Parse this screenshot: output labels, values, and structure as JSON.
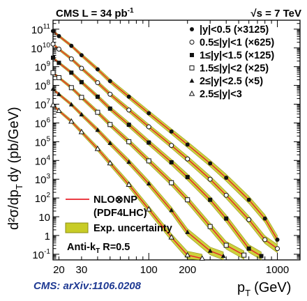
{
  "header": {
    "left": "CMS   L = 34 pb",
    "left_sup": "-1",
    "right": "√s = 7 TeV"
  },
  "citation": "CMS: arXiv:1106.0208",
  "chart_data": {
    "type": "scatter",
    "x_scale": "log",
    "y_scale": "log",
    "xlim": [
      18,
      1500
    ],
    "ylim": [
      0.05,
      300000000000
    ],
    "xlabel": "p",
    "xlabel_sub": "T",
    "xlabel_unit": "(GeV)",
    "ylabel": "d²σ/dp",
    "ylabel_sub": "T",
    "ylabel_rest": "dy (pb/GeV)",
    "x_ticks": [
      {
        "value": 20,
        "label": "20"
      },
      {
        "value": 30,
        "label": "30"
      },
      {
        "value": 100,
        "label": "100"
      },
      {
        "value": 200,
        "label": "200"
      },
      {
        "value": 1000,
        "label": "1000"
      }
    ],
    "y_ticks": [
      {
        "value": 100000000000,
        "base": "10",
        "exp": "11"
      },
      {
        "value": 10000000000,
        "base": "10",
        "exp": "10"
      },
      {
        "value": 1000000000,
        "base": "10",
        "exp": "9"
      },
      {
        "value": 100000000,
        "base": "10",
        "exp": "8"
      },
      {
        "value": 10000000,
        "base": "10",
        "exp": "7"
      },
      {
        "value": 1000000,
        "base": "10",
        "exp": "6"
      },
      {
        "value": 100000,
        "base": "10",
        "exp": "5"
      },
      {
        "value": 10000,
        "base": "10",
        "exp": "4"
      },
      {
        "value": 1000,
        "base": "10",
        "exp": "3"
      },
      {
        "value": 100,
        "base": "10",
        "exp": "2"
      },
      {
        "value": 10,
        "base": "10",
        "exp": ""
      },
      {
        "value": 1,
        "base": "1",
        "exp": ""
      },
      {
        "value": 0.1,
        "base": "10",
        "exp": "-1"
      }
    ],
    "series": [
      {
        "name": "|y|<0.5 (×3125)",
        "marker": "filled-circle",
        "x": [
          18,
          20,
          25,
          30,
          40,
          50,
          70,
          100,
          150,
          200,
          300,
          400,
          600,
          800,
          1000
        ],
        "y": [
          80000000000,
          43000000000,
          13000000000,
          4100000000,
          720000000,
          170000000,
          25000000,
          3300000,
          350000,
          70000,
          7000,
          1200,
          80,
          8,
          0.6
        ]
      },
      {
        "name": "0.5≤|y|<1 (×625)",
        "marker": "open-circle",
        "x": [
          18,
          20,
          25,
          30,
          40,
          50,
          70,
          100,
          150,
          200,
          300,
          400,
          600,
          800,
          1000
        ],
        "y": [
          16000000000,
          8600000000,
          2600000000,
          820000000,
          140000000,
          34000000,
          4900000,
          620000,
          63000,
          12000,
          1000,
          140,
          7,
          0.6,
          0.2
        ]
      },
      {
        "name": "1≤|y|<1.5 (×125)",
        "marker": "filled-square",
        "x": [
          18,
          20,
          25,
          30,
          40,
          50,
          70,
          100,
          150,
          200,
          300,
          400,
          600,
          750
        ],
        "y": [
          3000000000,
          1600000000,
          480000000,
          150000000,
          25000000,
          5800000,
          800000,
          90000,
          8000,
          1300,
          80,
          8,
          0.2,
          0.08
        ]
      },
      {
        "name": "1.5≤|y|<2 (×25)",
        "marker": "open-square",
        "x": [
          18,
          20,
          25,
          30,
          40,
          50,
          70,
          100,
          150,
          200,
          300,
          400,
          550
        ],
        "y": [
          480000000,
          260000000,
          76000000,
          23000000,
          3700000,
          820000,
          100000,
          9500,
          650,
          80,
          3,
          0.3,
          0.09
        ]
      },
      {
        "name": "2≤|y|<2.5 (×5)",
        "marker": "filled-triangle",
        "x": [
          18,
          20,
          25,
          30,
          40,
          50,
          70,
          100,
          150,
          200,
          300,
          380
        ],
        "y": [
          65000000,
          34000000,
          9600000,
          2800000,
          420000,
          84000,
          8300,
          580,
          22,
          1.5,
          0.15,
          0.08
        ]
      },
      {
        "name": "2.5≤|y|<3",
        "marker": "open-triangle",
        "x": [
          18,
          20,
          25,
          30,
          40,
          50,
          70,
          100,
          150,
          200,
          260
        ],
        "y": [
          9000000,
          4500000,
          1200000,
          330000,
          42000,
          7200,
          520,
          25,
          0.8,
          0.09,
          0.06
        ]
      }
    ],
    "legend_placement": "top-right",
    "legend_bottom": {
      "line_label": "NLO⊗NP",
      "line_sublabel": "(PDF4LHC)",
      "band_label": "Exp. uncertainty",
      "algo_label": "Anti-k",
      "algo_sub": "T",
      "algo_rest": " R=0.5"
    },
    "colors": {
      "theory_line": "#e8202a",
      "band_fill": "#c8cc26",
      "band_edge": "#8a8c10",
      "marker": "#111111",
      "axis": "#000000"
    }
  }
}
